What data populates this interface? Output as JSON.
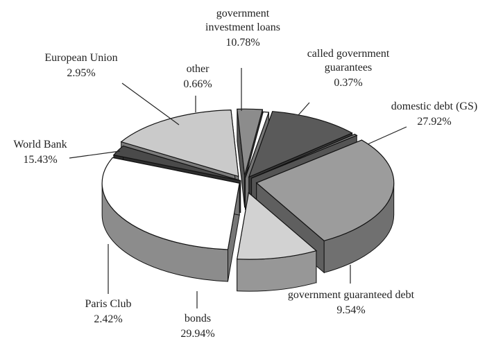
{
  "chart_data": {
    "type": "pie",
    "title": "",
    "style": "3d-exploded",
    "slices": [
      {
        "label": "domestic debt (GS)",
        "value": 27.92,
        "display": "27.92%",
        "color": "#9c9c9c"
      },
      {
        "label": "government guaranteed debt",
        "value": 9.54,
        "display": "9.54%",
        "color": "#d2d2d2"
      },
      {
        "label": "bonds",
        "value": 29.94,
        "display": "29.94%",
        "color": "#ffffff"
      },
      {
        "label": "Paris Club",
        "value": 2.42,
        "display": "2.42%",
        "color": "#4a4a4a"
      },
      {
        "label": "World Bank",
        "value": 15.43,
        "display": "15.43%",
        "color": "#cacaca"
      },
      {
        "label": "European Union",
        "value": 2.95,
        "display": "2.95%",
        "color": "#8c8c8c"
      },
      {
        "label": "other",
        "value": 0.66,
        "display": "0.66%",
        "color": "#ffffff"
      },
      {
        "label": "government investment loans",
        "value": 10.78,
        "display": "10.78%",
        "color": "#5a5a5a"
      },
      {
        "label": "called government guarantees",
        "value": 0.37,
        "display": "0.37%",
        "color": "#8a8a8a"
      }
    ]
  }
}
